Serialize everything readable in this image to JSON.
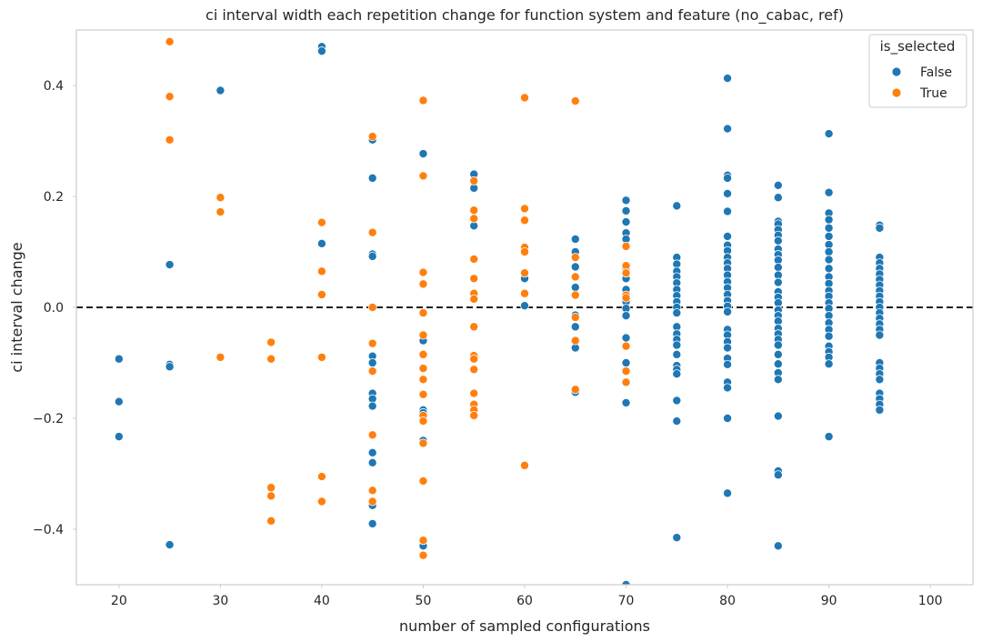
{
  "chart_data": {
    "type": "scatter",
    "title": "ci interval width each repetition change for function system and feature (no_cabac, ref)",
    "xlabel": "number of sampled configurations",
    "ylabel": "ci interval change",
    "xlim": [
      15.8,
      104.2
    ],
    "ylim": [
      -0.5,
      0.5
    ],
    "xticks": [
      20,
      30,
      40,
      50,
      60,
      70,
      80,
      90,
      100
    ],
    "yticks": [
      -0.4,
      -0.2,
      0.0,
      0.2,
      0.4
    ],
    "ytick_labels": [
      "−0.4",
      "−0.2",
      "0.0",
      "0.2",
      "0.4"
    ],
    "grid": false,
    "reference_line": {
      "y": 0.0,
      "style": "dashed",
      "color": "#000000"
    },
    "legend": {
      "title": "is_selected",
      "placement": "top-right"
    },
    "series": [
      {
        "name": "False",
        "color": "#1f77b4",
        "points": [
          [
            20,
            -0.093
          ],
          [
            20,
            -0.17
          ],
          [
            20,
            -0.233
          ],
          [
            25,
            0.077
          ],
          [
            25,
            -0.103
          ],
          [
            25,
            -0.107
          ],
          [
            25,
            -0.428
          ],
          [
            30,
            0.391
          ],
          [
            40,
            0.47
          ],
          [
            40,
            0.462
          ],
          [
            40,
            0.115
          ],
          [
            45,
            0.302
          ],
          [
            45,
            0.233
          ],
          [
            45,
            0.096
          ],
          [
            45,
            0.092
          ],
          [
            45,
            -0.088
          ],
          [
            45,
            -0.1
          ],
          [
            45,
            -0.155
          ],
          [
            45,
            -0.165
          ],
          [
            45,
            -0.178
          ],
          [
            45,
            -0.262
          ],
          [
            45,
            -0.28
          ],
          [
            45,
            -0.357
          ],
          [
            45,
            -0.39
          ],
          [
            50,
            0.277
          ],
          [
            50,
            -0.06
          ],
          [
            50,
            -0.185
          ],
          [
            50,
            -0.19
          ],
          [
            50,
            -0.24
          ],
          [
            50,
            -0.245
          ],
          [
            50,
            -0.43
          ],
          [
            55,
            0.24
          ],
          [
            55,
            0.215
          ],
          [
            55,
            0.147
          ],
          [
            60,
            0.052
          ],
          [
            60,
            0.003
          ],
          [
            65,
            0.123
          ],
          [
            65,
            0.1
          ],
          [
            65,
            0.073
          ],
          [
            65,
            0.036
          ],
          [
            65,
            -0.014
          ],
          [
            65,
            -0.035
          ],
          [
            65,
            -0.073
          ],
          [
            65,
            -0.153
          ],
          [
            70,
            0.193
          ],
          [
            70,
            0.174
          ],
          [
            70,
            0.154
          ],
          [
            70,
            0.134
          ],
          [
            70,
            0.123
          ],
          [
            70,
            0.07
          ],
          [
            70,
            0.062
          ],
          [
            70,
            0.052
          ],
          [
            70,
            0.032
          ],
          [
            70,
            0.01
          ],
          [
            70,
            -0.002
          ],
          [
            70,
            -0.015
          ],
          [
            70,
            -0.055
          ],
          [
            70,
            -0.1
          ],
          [
            70,
            -0.172
          ],
          [
            70,
            -0.5
          ],
          [
            75,
            0.183
          ],
          [
            75,
            0.09
          ],
          [
            75,
            0.078
          ],
          [
            75,
            0.065
          ],
          [
            75,
            0.055
          ],
          [
            75,
            0.044
          ],
          [
            75,
            0.032
          ],
          [
            75,
            0.021
          ],
          [
            75,
            0.01
          ],
          [
            75,
            0.0
          ],
          [
            75,
            -0.01
          ],
          [
            75,
            -0.035
          ],
          [
            75,
            -0.048
          ],
          [
            75,
            -0.058
          ],
          [
            75,
            -0.068
          ],
          [
            75,
            -0.085
          ],
          [
            75,
            -0.105
          ],
          [
            75,
            -0.112
          ],
          [
            75,
            -0.12
          ],
          [
            75,
            -0.168
          ],
          [
            75,
            -0.205
          ],
          [
            75,
            -0.415
          ],
          [
            80,
            0.413
          ],
          [
            80,
            0.322
          ],
          [
            80,
            0.238
          ],
          [
            80,
            0.233
          ],
          [
            80,
            0.205
          ],
          [
            80,
            0.173
          ],
          [
            80,
            0.128
          ],
          [
            80,
            0.112
          ],
          [
            80,
            0.102
          ],
          [
            80,
            0.09
          ],
          [
            80,
            0.08
          ],
          [
            80,
            0.07
          ],
          [
            80,
            0.058
          ],
          [
            80,
            0.046
          ],
          [
            80,
            0.035
          ],
          [
            80,
            0.023
          ],
          [
            80,
            0.012
          ],
          [
            80,
            0.002
          ],
          [
            80,
            -0.008
          ],
          [
            80,
            -0.04
          ],
          [
            80,
            -0.05
          ],
          [
            80,
            -0.062
          ],
          [
            80,
            -0.073
          ],
          [
            80,
            -0.092
          ],
          [
            80,
            -0.103
          ],
          [
            80,
            -0.135
          ],
          [
            80,
            -0.145
          ],
          [
            80,
            -0.2
          ],
          [
            80,
            -0.335
          ],
          [
            85,
            0.22
          ],
          [
            85,
            0.198
          ],
          [
            85,
            0.155
          ],
          [
            85,
            0.15
          ],
          [
            85,
            0.14
          ],
          [
            85,
            0.13
          ],
          [
            85,
            0.12
          ],
          [
            85,
            0.105
          ],
          [
            85,
            0.095
          ],
          [
            85,
            0.085
          ],
          [
            85,
            0.072
          ],
          [
            85,
            0.058
          ],
          [
            85,
            0.045
          ],
          [
            85,
            0.028
          ],
          [
            85,
            0.018
          ],
          [
            85,
            0.008
          ],
          [
            85,
            -0.005
          ],
          [
            85,
            -0.015
          ],
          [
            85,
            -0.025
          ],
          [
            85,
            -0.038
          ],
          [
            85,
            -0.048
          ],
          [
            85,
            -0.058
          ],
          [
            85,
            -0.068
          ],
          [
            85,
            -0.085
          ],
          [
            85,
            -0.102
          ],
          [
            85,
            -0.118
          ],
          [
            85,
            -0.13
          ],
          [
            85,
            -0.196
          ],
          [
            85,
            -0.295
          ],
          [
            85,
            -0.302
          ],
          [
            85,
            -0.43
          ],
          [
            90,
            0.313
          ],
          [
            90,
            0.207
          ],
          [
            90,
            0.17
          ],
          [
            90,
            0.158
          ],
          [
            90,
            0.143
          ],
          [
            90,
            0.128
          ],
          [
            90,
            0.113
          ],
          [
            90,
            0.1
          ],
          [
            90,
            0.086
          ],
          [
            90,
            0.07
          ],
          [
            90,
            0.055
          ],
          [
            90,
            0.043
          ],
          [
            90,
            0.03
          ],
          [
            90,
            0.02
          ],
          [
            90,
            0.008
          ],
          [
            90,
            -0.002
          ],
          [
            90,
            -0.015
          ],
          [
            90,
            -0.028
          ],
          [
            90,
            -0.04
          ],
          [
            90,
            -0.052
          ],
          [
            90,
            -0.07
          ],
          [
            90,
            -0.08
          ],
          [
            90,
            -0.09
          ],
          [
            90,
            -0.102
          ],
          [
            90,
            -0.233
          ],
          [
            95,
            0.148
          ],
          [
            95,
            0.143
          ],
          [
            95,
            0.09
          ],
          [
            95,
            0.08
          ],
          [
            95,
            0.07
          ],
          [
            95,
            0.06
          ],
          [
            95,
            0.05
          ],
          [
            95,
            0.04
          ],
          [
            95,
            0.03
          ],
          [
            95,
            0.02
          ],
          [
            95,
            0.01
          ],
          [
            95,
            0.0
          ],
          [
            95,
            -0.01
          ],
          [
            95,
            -0.02
          ],
          [
            95,
            -0.03
          ],
          [
            95,
            -0.04
          ],
          [
            95,
            -0.05
          ],
          [
            95,
            -0.1
          ],
          [
            95,
            -0.11
          ],
          [
            95,
            -0.12
          ],
          [
            95,
            -0.13
          ],
          [
            95,
            -0.155
          ],
          [
            95,
            -0.165
          ],
          [
            95,
            -0.175
          ],
          [
            95,
            -0.185
          ]
        ]
      },
      {
        "name": "True",
        "color": "#ff7f0e",
        "points": [
          [
            25,
            0.479
          ],
          [
            25,
            0.38
          ],
          [
            25,
            0.302
          ],
          [
            30,
            0.198
          ],
          [
            30,
            0.172
          ],
          [
            30,
            -0.09
          ],
          [
            35,
            -0.063
          ],
          [
            35,
            -0.093
          ],
          [
            35,
            -0.325
          ],
          [
            35,
            -0.34
          ],
          [
            35,
            -0.385
          ],
          [
            40,
            0.153
          ],
          [
            40,
            0.065
          ],
          [
            40,
            0.023
          ],
          [
            40,
            -0.09
          ],
          [
            40,
            -0.305
          ],
          [
            40,
            -0.35
          ],
          [
            45,
            0.308
          ],
          [
            45,
            0.135
          ],
          [
            45,
            0.0
          ],
          [
            45,
            -0.065
          ],
          [
            45,
            -0.115
          ],
          [
            45,
            -0.23
          ],
          [
            45,
            -0.33
          ],
          [
            45,
            -0.35
          ],
          [
            50,
            0.373
          ],
          [
            50,
            0.237
          ],
          [
            50,
            0.063
          ],
          [
            50,
            0.042
          ],
          [
            50,
            -0.01
          ],
          [
            50,
            -0.05
          ],
          [
            50,
            -0.085
          ],
          [
            50,
            -0.11
          ],
          [
            50,
            -0.13
          ],
          [
            50,
            -0.157
          ],
          [
            50,
            -0.195
          ],
          [
            50,
            -0.205
          ],
          [
            50,
            -0.245
          ],
          [
            50,
            -0.313
          ],
          [
            50,
            -0.42
          ],
          [
            50,
            -0.447
          ],
          [
            55,
            0.228
          ],
          [
            55,
            0.175
          ],
          [
            55,
            0.16
          ],
          [
            55,
            0.087
          ],
          [
            55,
            0.052
          ],
          [
            55,
            0.025
          ],
          [
            55,
            0.015
          ],
          [
            55,
            -0.035
          ],
          [
            55,
            -0.087
          ],
          [
            55,
            -0.093
          ],
          [
            55,
            -0.112
          ],
          [
            55,
            -0.155
          ],
          [
            55,
            -0.175
          ],
          [
            55,
            -0.185
          ],
          [
            55,
            -0.195
          ],
          [
            60,
            0.378
          ],
          [
            60,
            0.178
          ],
          [
            60,
            0.157
          ],
          [
            60,
            0.108
          ],
          [
            60,
            0.1
          ],
          [
            60,
            0.062
          ],
          [
            60,
            0.025
          ],
          [
            60,
            -0.285
          ],
          [
            65,
            0.372
          ],
          [
            65,
            0.09
          ],
          [
            65,
            0.055
          ],
          [
            65,
            0.022
          ],
          [
            65,
            -0.018
          ],
          [
            65,
            -0.06
          ],
          [
            65,
            -0.148
          ],
          [
            70,
            0.11
          ],
          [
            70,
            0.075
          ],
          [
            70,
            0.062
          ],
          [
            70,
            0.022
          ],
          [
            70,
            0.017
          ],
          [
            70,
            -0.07
          ],
          [
            70,
            -0.115
          ],
          [
            70,
            -0.135
          ]
        ]
      }
    ]
  }
}
